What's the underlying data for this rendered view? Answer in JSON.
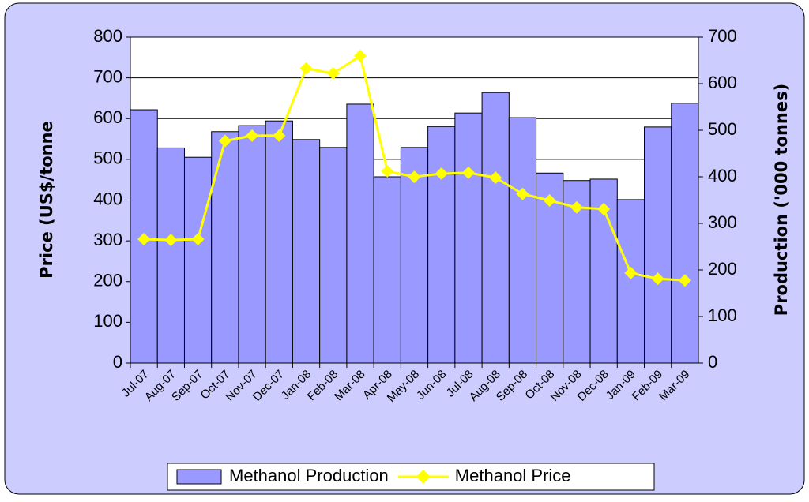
{
  "chart_data": {
    "type": "bar_line",
    "categories": [
      "Jul-07",
      "Aug-07",
      "Sep-07",
      "Oct-07",
      "Nov-07",
      "Dec-07",
      "Jan-08",
      "Feb-08",
      "Mar-08",
      "Apr-08",
      "May-08",
      "Jun-08",
      "Jul-08",
      "Aug-08",
      "Sep-08",
      "Oct-08",
      "Nov-08",
      "Dec-08",
      "Jan-09",
      "Feb-09",
      "Mar-09"
    ],
    "series": [
      {
        "name": "Methanol Production",
        "type": "bar",
        "axis": "y2",
        "color": "#9999ff",
        "values": [
          544,
          462,
          442,
          497,
          510,
          520,
          480,
          463,
          556,
          400,
          463,
          508,
          537,
          581,
          527,
          408,
          392,
          395,
          351,
          507,
          558
        ]
      },
      {
        "name": "Methanol Price",
        "type": "line",
        "axis": "y",
        "color": "#ffff00",
        "values": [
          304,
          302,
          304,
          545,
          558,
          558,
          723,
          711,
          754,
          471,
          457,
          465,
          467,
          455,
          415,
          399,
          382,
          378,
          221,
          207,
          203
        ]
      }
    ],
    "y_label": "Price (US$/tonne",
    "y2_label": "Production ('000 tonnes)",
    "ylim": [
      0,
      800
    ],
    "yticks": [
      0,
      100,
      200,
      300,
      400,
      500,
      600,
      700,
      800
    ],
    "y2lim": [
      0,
      700
    ],
    "y2ticks": [
      0,
      100,
      200,
      300,
      400,
      500,
      600,
      700
    ],
    "grid": true,
    "legend": "bottom"
  }
}
